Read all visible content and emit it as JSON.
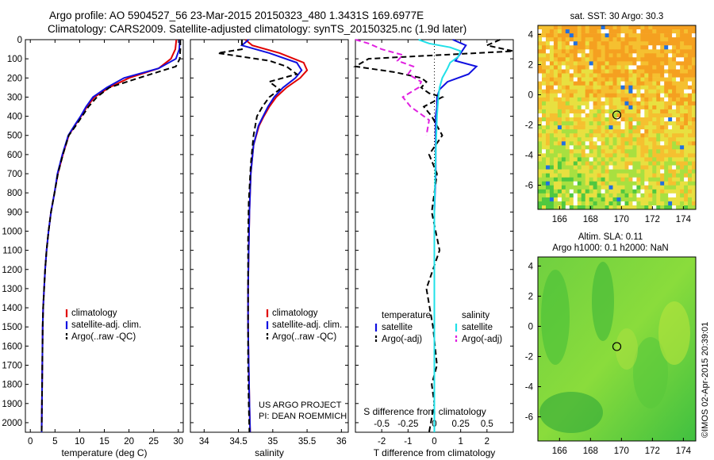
{
  "header": {
    "line1": "Argo profile: AO 5904527_56 23-Mar-2015 20150323_480 1.3431S 169.6977E",
    "line2": "Climatology: CARS2009. Satellite-adjusted climatology: synTS_20150325.nc (1.9d later)"
  },
  "credit": {
    "line1": "US ARGO PROJECT",
    "line2": "PI: DEAN ROEMMICH"
  },
  "stamp": "©IMOS 02-Apr-2015 20:39:01",
  "colors": {
    "climatology": "#e00000",
    "satellite": "#1010e0",
    "argo": "#000000",
    "sat_sal": "#20e0e8",
    "argo_sal": "#e020e0"
  },
  "chart_data": [
    {
      "type": "line",
      "id": "temperature",
      "xlabel": "temperature (deg C)",
      "ylabel": "",
      "xlim": [
        -1,
        31
      ],
      "ylim": [
        2050,
        0
      ],
      "xticks": [
        0,
        5,
        10,
        15,
        20,
        25,
        30
      ],
      "yticks": [
        0,
        100,
        200,
        300,
        400,
        500,
        600,
        700,
        800,
        900,
        1000,
        1100,
        1200,
        1300,
        1400,
        1500,
        1600,
        1700,
        1800,
        1900,
        2000
      ],
      "legend": [
        "climatology",
        "satellite-adj. clim.",
        "Argo(..raw -QC)"
      ],
      "legend_loc": "lower-center",
      "series": [
        {
          "name": "climatology",
          "x": [
            29.6,
            29.4,
            28.5,
            26,
            20,
            16,
            13,
            11.5,
            10.3,
            9,
            7.8,
            6.6,
            5.6,
            4.9,
            4.2,
            3.7,
            3.3,
            3.0,
            2.8,
            2.6,
            2.5,
            2.4,
            2.3
          ],
          "y": [
            0,
            50,
            100,
            150,
            200,
            250,
            300,
            350,
            400,
            450,
            500,
            600,
            700,
            800,
            900,
            1000,
            1100,
            1200,
            1300,
            1400,
            1500,
            1800,
            2050
          ]
        },
        {
          "name": "satellite-adj. clim.",
          "x": [
            30.3,
            30.2,
            29.5,
            26,
            19,
            15.5,
            12.7,
            11.3,
            10.2,
            8.9,
            7.7,
            6.5,
            5.5,
            4.9,
            4.2,
            3.7,
            3.3,
            3.0,
            2.8,
            2.6,
            2.5,
            2.4,
            2.3
          ],
          "y": [
            0,
            50,
            100,
            150,
            200,
            250,
            300,
            350,
            400,
            450,
            500,
            600,
            700,
            800,
            900,
            1000,
            1100,
            1200,
            1300,
            1400,
            1500,
            1800,
            2050
          ]
        },
        {
          "name": "Argo(..raw -QC)",
          "x": [
            30.4,
            30.4,
            30.3,
            29.5,
            27,
            22,
            16,
            13.5,
            11.8,
            10.5,
            9.2,
            7.8,
            6.6,
            5.6,
            4.9,
            4.2,
            3.7,
            3.3,
            3.0,
            2.8,
            2.6,
            2.5,
            2.4,
            2.3
          ],
          "y": [
            0,
            50,
            100,
            140,
            160,
            200,
            250,
            300,
            350,
            400,
            450,
            500,
            600,
            700,
            800,
            900,
            1000,
            1100,
            1200,
            1300,
            1400,
            1500,
            1800,
            2050
          ]
        }
      ]
    },
    {
      "type": "line",
      "id": "salinity",
      "xlabel": "salinity",
      "xlim": [
        33.8,
        36.1
      ],
      "ylim": [
        2050,
        0
      ],
      "xticks": [
        34,
        34.5,
        35,
        35.5,
        36
      ],
      "legend": [
        "climatology",
        "satellite-adj. clim.",
        "Argo(..raw -QC)"
      ],
      "legend_loc": "lower-right",
      "series": [
        {
          "name": "climatology",
          "x": [
            34.6,
            34.7,
            35.1,
            35.45,
            35.5,
            35.4,
            35.2,
            35.05,
            34.95,
            34.87,
            34.8,
            34.72,
            34.68,
            34.66,
            34.65,
            34.64,
            34.64,
            34.65,
            34.66,
            34.67
          ],
          "y": [
            0,
            30,
            70,
            120,
            160,
            200,
            250,
            300,
            350,
            400,
            450,
            550,
            700,
            900,
            1100,
            1300,
            1500,
            1700,
            1900,
            2050
          ]
        },
        {
          "name": "satellite-adj. clim.",
          "x": [
            34.65,
            34.55,
            34.95,
            35.35,
            35.42,
            35.33,
            35.15,
            35.02,
            34.93,
            34.86,
            34.79,
            34.72,
            34.68,
            34.66,
            34.65,
            34.64,
            34.64,
            34.65,
            34.66,
            34.67
          ],
          "y": [
            0,
            30,
            70,
            120,
            160,
            200,
            250,
            300,
            350,
            400,
            450,
            550,
            700,
            900,
            1100,
            1300,
            1500,
            1700,
            1900,
            2050
          ]
        },
        {
          "name": "Argo(..raw -QC)",
          "x": [
            34.55,
            34.55,
            34.2,
            34.95,
            35.2,
            35.35,
            34.95,
            35.1,
            34.95,
            34.85,
            34.77,
            34.72,
            34.68,
            34.65,
            34.64,
            34.64,
            34.64,
            34.64,
            34.65,
            34.66
          ],
          "y": [
            0,
            50,
            70,
            110,
            140,
            180,
            220,
            260,
            300,
            350,
            400,
            500,
            650,
            850,
            1050,
            1300,
            1500,
            1700,
            1900,
            2050
          ]
        }
      ]
    },
    {
      "type": "line",
      "id": "difference",
      "xlabel": "T difference from climatology",
      "xlabel_top": "S difference from climatology",
      "xlim": [
        -3,
        3
      ],
      "ylim": [
        2050,
        0
      ],
      "xticks": [
        -2,
        -1,
        0,
        1,
        2
      ],
      "xticks_top": [
        -0.5,
        -0.25,
        0,
        0.25,
        0.5
      ],
      "xticks_top_labels": [
        "-0.5",
        "-0.25",
        "0",
        "0.25",
        "0.5"
      ],
      "legend_temperature": "temperature",
      "legend_salinity": "salinity",
      "legend": [
        "satellite",
        "Argo(-adj)",
        "satellite",
        "Argo(-adj)"
      ],
      "series": [
        {
          "name": "temperature satellite",
          "x": [
            0.7,
            1.2,
            1.0,
            0.8,
            1.6,
            1.3,
            0.5,
            0.2,
            0.1,
            0.1,
            0.05,
            0.05,
            0.05,
            0.0,
            0.0,
            0.0,
            0.0,
            0.0,
            0.0
          ],
          "y": [
            0,
            30,
            70,
            110,
            140,
            180,
            220,
            260,
            300,
            350,
            400,
            500,
            700,
            900,
            1100,
            1400,
            1700,
            1900,
            2050
          ]
        },
        {
          "name": "temperature Argo(-adj)",
          "x": [
            2.5,
            2.0,
            3.0,
            -2.5,
            -3.0,
            -1.5,
            -0.5,
            -0.3,
            -0.5,
            -0.2,
            0.3,
            -0.4,
            -0.1,
            0.3,
            -0.2,
            0.1,
            -0.1,
            0.2,
            -0.3,
            -0.05,
            0.1,
            -0.1,
            0.0,
            -0.2
          ],
          "y": [
            0,
            30,
            60,
            100,
            140,
            170,
            200,
            220,
            250,
            280,
            300,
            350,
            400,
            500,
            600,
            700,
            900,
            1100,
            1300,
            1500,
            1700,
            1800,
            1900,
            2050
          ]
        },
        {
          "name": "salinity satellite",
          "x": [
            -0.6,
            -0.2,
            0.6,
            1.0,
            0.9,
            0.6,
            0.5,
            0.3,
            0.2,
            0.15,
            0.1,
            0.05,
            0.0,
            0.0,
            0.0,
            0.0
          ],
          "y": [
            0,
            20,
            40,
            60,
            90,
            120,
            150,
            200,
            250,
            300,
            400,
            600,
            900,
            1200,
            1600,
            2050
          ]
        },
        {
          "name": "salinity Argo(-adj)",
          "x": [
            -3.0,
            -2.5,
            -2.0,
            -1.2,
            -1.4,
            -0.8,
            -1.0,
            -0.5,
            -0.6,
            -1.2,
            -0.9,
            -0.2,
            -0.3
          ],
          "y": [
            0,
            20,
            50,
            80,
            110,
            140,
            180,
            220,
            250,
            300,
            350,
            420,
            500
          ]
        }
      ]
    },
    {
      "type": "heatmap",
      "id": "sst_map",
      "title": "sat. SST: 30 Argo: 30.3",
      "xlim": [
        164.6,
        174.8
      ],
      "ylim": [
        -7.6,
        4.6
      ],
      "xticks": [
        166,
        168,
        170,
        172,
        174
      ],
      "yticks": [
        -6,
        -4,
        -2,
        0,
        2,
        4
      ],
      "marker": {
        "lon": 169.7,
        "lat": -1.34
      }
    },
    {
      "type": "heatmap",
      "id": "sla_map",
      "title": "Altim. SLA: 0.11",
      "subtitle": "Argo h1000: 0.1 h2000: NaN",
      "xlim": [
        164.6,
        174.8
      ],
      "ylim": [
        -7.6,
        4.6
      ],
      "xticks": [
        166,
        168,
        170,
        172,
        174
      ],
      "yticks": [
        -6,
        -4,
        -2,
        0,
        2,
        4
      ],
      "marker": {
        "lon": 169.7,
        "lat": -1.34
      }
    }
  ]
}
